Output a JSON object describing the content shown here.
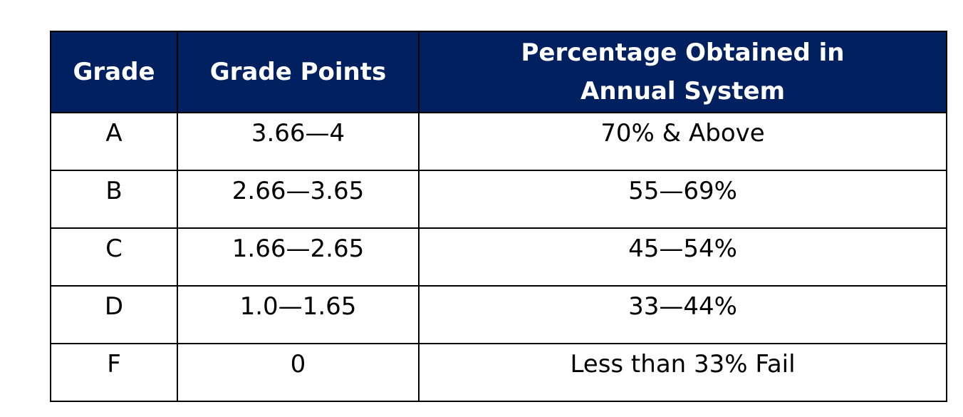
{
  "table": {
    "header": [
      "Grade",
      "Grade Points",
      "Percentage Obtained in Annual System"
    ],
    "rows": [
      [
        "A",
        "3.66—4",
        "70% & Above"
      ],
      [
        "B",
        "2.66—3.65",
        "55—69%"
      ],
      [
        "C",
        "1.66—2.65",
        "45—54%"
      ],
      [
        "D",
        "1.0—1.65",
        "33—44%"
      ],
      [
        "F",
        "0",
        "Less than 33% Fail"
      ]
    ]
  }
}
